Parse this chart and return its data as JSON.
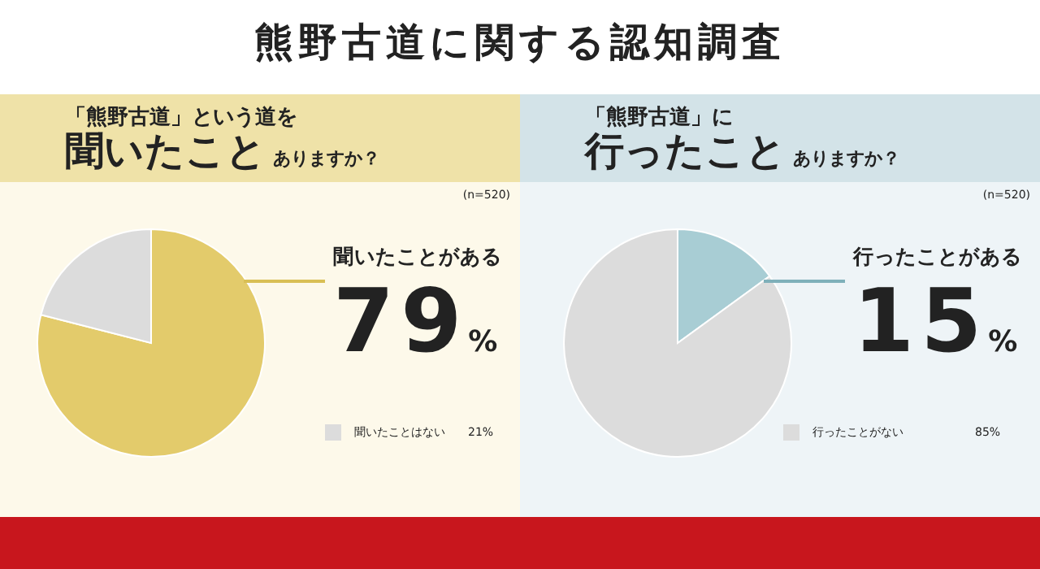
{
  "chart_data": [
    {
      "type": "pie",
      "title": "熊野古道に関する認知調査",
      "subtitle": "「熊野古道」という道を聞いたことありますか？",
      "annotations": [
        "(n=520)"
      ],
      "categories": [
        "聞いたことがある",
        "聞いたことはない"
      ],
      "values": [
        79,
        21
      ],
      "value_labels": [
        "79%",
        "21%"
      ],
      "colors": [
        "#e3cb6b",
        "#dcdcdc"
      ]
    },
    {
      "type": "pie",
      "subtitle": "「熊野古道」に行ったことありますか？",
      "annotations": [
        "(n=520)"
      ],
      "categories": [
        "行ったことがある",
        "行ったことがない"
      ],
      "values": [
        15,
        85
      ],
      "value_labels": [
        "15%",
        "85%"
      ],
      "colors": [
        "#a8cdd4",
        "#dcdcdc"
      ]
    }
  ]
}
